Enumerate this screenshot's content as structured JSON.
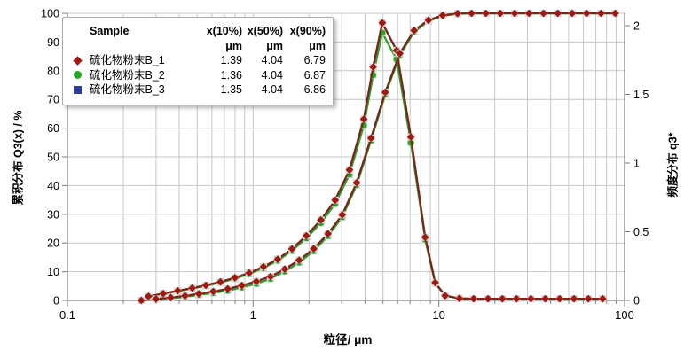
{
  "legend": {
    "header": {
      "sample": "Sample",
      "x10": "x(10%)",
      "x50": "x(50%)",
      "x90": "x(90%)"
    },
    "units": {
      "x10": "μm",
      "x50": "μm",
      "x90": "μm"
    },
    "rows": [
      {
        "name": "硫化物粉末B_1",
        "x10": "1.39",
        "x50": "4.04",
        "x90": "6.79",
        "marker": "diamond",
        "color": "#9e1a10"
      },
      {
        "name": "硫化物粉末B_2",
        "x10": "1.36",
        "x50": "4.04",
        "x90": "6.87",
        "marker": "circle",
        "color": "#1fa81f"
      },
      {
        "name": "硫化物粉末B_3",
        "x10": "1.35",
        "x50": "4.04",
        "x90": "6.86",
        "marker": "square",
        "color": "#2c3e97"
      }
    ]
  },
  "axes": {
    "left": {
      "title": "累积分布 Q3(x) / %",
      "tick_values": [
        0,
        10,
        20,
        30,
        40,
        50,
        60,
        70,
        80,
        90,
        100
      ],
      "tick_labels": [
        "0",
        "10",
        "20",
        "30",
        "40",
        "50",
        "60",
        "70",
        "80",
        "90",
        "100"
      ]
    },
    "right": {
      "title": "频度分布 q3*",
      "tick_values": [
        0,
        0.5,
        1,
        1.5,
        2
      ],
      "tick_labels": [
        "0",
        "0.5",
        "1",
        "1.5",
        "2"
      ]
    },
    "bottom": {
      "title": "粒径/ μm",
      "tick_values": [
        0.1,
        1,
        10,
        100
      ],
      "tick_labels": [
        "0.1",
        "1",
        "10",
        "100"
      ]
    }
  },
  "chart_data": {
    "type": "line",
    "title": "",
    "x_scale": "log",
    "x_range": [
      0.1,
      100
    ],
    "y_left_range": [
      0,
      100
    ],
    "y_right_range": [
      0,
      2.09
    ],
    "grid": true,
    "legend_position": "top-left",
    "colors": {
      "grid": "#c6c6c6",
      "axis": "#7f7f7f",
      "marker_halo": "#d9d9d9"
    },
    "x_cumulative": [
      0.25,
      0.3,
      0.36,
      0.43,
      0.51,
      0.61,
      0.73,
      0.87,
      1.04,
      1.24,
      1.48,
      1.77,
      2.12,
      2.53,
      3.02,
      3.61,
      4.31,
      5.15,
      6.16,
      7.36,
      8.79,
      10.5,
      12.6,
      15.0,
      17.9,
      21.4,
      25.6,
      30.6,
      36.6,
      43.7,
      52.2,
      62.4,
      74.6,
      89.1
    ],
    "x_density": [
      0.25,
      0.273,
      0.328,
      0.393,
      0.47,
      0.557,
      0.667,
      0.798,
      0.951,
      1.137,
      1.355,
      1.618,
      1.935,
      2.317,
      2.766,
      3.301,
      3.946,
      4.43,
      4.96,
      5.92,
      7.07,
      8.44,
      9.55,
      10.8,
      12.9,
      15.4,
      18.4,
      22.0,
      26.2,
      31.3,
      37.4,
      44.7,
      53.4,
      63.8,
      76.2
    ],
    "draw_order": [
      "B_3",
      "B_2",
      "B_1"
    ],
    "samples": {
      "B_1": {
        "label": "硫化物粉末B_1",
        "marker": "diamond",
        "line_color": "#7d2417",
        "marker_color": "#9e1a10",
        "x10_um": 1.39,
        "x50_um": 4.04,
        "x90_um": 6.79,
        "cumulative": [
          0,
          0.5,
          1.0,
          1.6,
          2.3,
          3.1,
          4.0,
          5.2,
          6.6,
          8.3,
          10.9,
          14.0,
          18.0,
          23.2,
          29.8,
          41.0,
          56.5,
          72.5,
          86.0,
          94.0,
          97.6,
          99.3,
          99.9,
          100,
          100,
          100,
          100,
          100,
          100,
          100,
          100,
          100,
          100,
          100
        ],
        "density": [
          0,
          0.03,
          0.05,
          0.07,
          0.09,
          0.11,
          0.135,
          0.165,
          0.2,
          0.245,
          0.3,
          0.375,
          0.47,
          0.585,
          0.73,
          0.95,
          1.32,
          1.7,
          2.02,
          1.82,
          1.19,
          0.46,
          0.13,
          0.035,
          0.015,
          0.012,
          0.012,
          0.012,
          0.012,
          0.012,
          0.012,
          0.012,
          0.012,
          0.012,
          0.012
        ]
      },
      "B_2": {
        "label": "硫化物粉末B_2",
        "marker": "circle",
        "line_color": "#2f9e2f",
        "marker_color": "#1fa81f",
        "x10_um": 1.36,
        "x50_um": 4.04,
        "x90_um": 6.87,
        "cumulative": [
          0,
          0.4,
          0.8,
          1.2,
          1.9,
          2.6,
          3.4,
          4.5,
          5.8,
          7.5,
          10.1,
          13.2,
          17.2,
          22.4,
          29.0,
          40.2,
          55.7,
          71.7,
          85.3,
          93.5,
          97.3,
          99.1,
          99.8,
          100,
          100,
          100,
          100,
          100,
          100,
          100,
          100,
          100,
          100,
          100
        ],
        "density": [
          0,
          0.029,
          0.048,
          0.067,
          0.086,
          0.106,
          0.13,
          0.159,
          0.193,
          0.236,
          0.289,
          0.362,
          0.453,
          0.564,
          0.704,
          0.916,
          1.273,
          1.64,
          1.948,
          1.756,
          1.148,
          0.444,
          0.125,
          0.034,
          0.014,
          0.012,
          0.012,
          0.012,
          0.012,
          0.012,
          0.012,
          0.012,
          0.012,
          0.012,
          0.012
        ]
      },
      "B_3": {
        "label": "硫化物粉末B_3",
        "marker": "square",
        "line_color": "#2e4399",
        "marker_color": "#2c3e97",
        "x10_um": 1.35,
        "x50_um": 4.04,
        "x90_um": 6.86,
        "cumulative": [
          0,
          0.5,
          1.0,
          1.6,
          2.3,
          3.1,
          4.0,
          5.2,
          6.6,
          8.3,
          10.9,
          14.0,
          18.0,
          23.2,
          29.8,
          41.0,
          56.5,
          72.5,
          86.0,
          94.0,
          97.6,
          99.3,
          99.9,
          100,
          100,
          100,
          100,
          100,
          100,
          100,
          100,
          100,
          100,
          100
        ],
        "density": [
          0,
          0.03,
          0.05,
          0.07,
          0.09,
          0.11,
          0.135,
          0.165,
          0.2,
          0.245,
          0.3,
          0.375,
          0.47,
          0.585,
          0.73,
          0.95,
          1.32,
          1.7,
          2.02,
          1.82,
          1.19,
          0.46,
          0.13,
          0.035,
          0.015,
          0.012,
          0.012,
          0.012,
          0.012,
          0.012,
          0.012,
          0.012,
          0.012,
          0.012,
          0.012
        ]
      }
    }
  }
}
